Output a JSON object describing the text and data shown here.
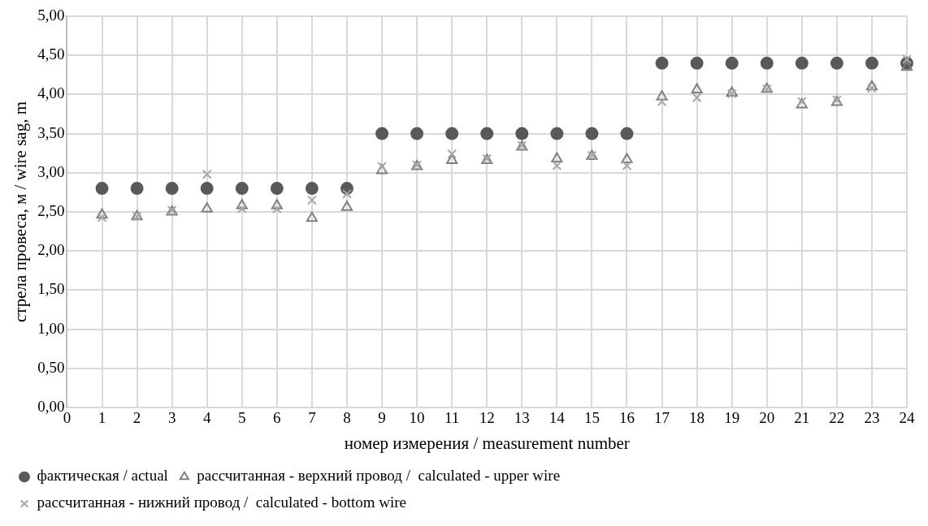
{
  "chart_data": {
    "type": "scatter",
    "xlabel": "номер измерения / measurement number",
    "ylabel": "стрела провеса, м / wire sag, m",
    "x": [
      1,
      2,
      3,
      4,
      5,
      6,
      7,
      8,
      9,
      10,
      11,
      12,
      13,
      14,
      15,
      16,
      17,
      18,
      19,
      20,
      21,
      22,
      23,
      24
    ],
    "series": [
      {
        "name": "фактическая / actual",
        "color": "#595959",
        "marker": "circle",
        "values": [
          2.8,
          2.8,
          2.8,
          2.8,
          2.8,
          2.8,
          2.8,
          2.8,
          3.5,
          3.5,
          3.5,
          3.5,
          3.5,
          3.5,
          3.5,
          3.5,
          4.4,
          4.4,
          4.4,
          4.4,
          4.4,
          4.4,
          4.4,
          4.4
        ]
      },
      {
        "name": "рассчитанная - верхний провод /  calculated - upper wire",
        "color": "#7f7f7f",
        "marker": "triangle",
        "values": [
          2.46,
          2.44,
          2.5,
          2.54,
          2.58,
          2.58,
          2.42,
          2.56,
          3.03,
          3.08,
          3.16,
          3.16,
          3.33,
          3.18,
          3.21,
          3.17,
          3.97,
          4.06,
          4.02,
          4.07,
          3.87,
          3.9,
          4.1,
          4.35
        ]
      },
      {
        "name": "рассчитанная - нижний провод /  calculated - bottom wire",
        "color": "#a6a6a6",
        "marker": "cross",
        "values": [
          2.43,
          2.44,
          2.52,
          2.98,
          2.54,
          2.54,
          2.65,
          2.73,
          3.08,
          3.1,
          3.24,
          3.18,
          3.35,
          3.09,
          3.22,
          3.09,
          3.91,
          3.96,
          4.01,
          4.07,
          3.91,
          3.93,
          4.08,
          4.45
        ]
      }
    ],
    "xlim": [
      0,
      24
    ],
    "xticks": [
      0,
      1,
      2,
      3,
      4,
      5,
      6,
      7,
      8,
      9,
      10,
      11,
      12,
      13,
      14,
      15,
      16,
      17,
      18,
      19,
      20,
      21,
      22,
      23,
      24
    ],
    "ylim": [
      0,
      5
    ],
    "yticks": [
      {
        "value": 0,
        "label": "0,00"
      },
      {
        "value": 0.5,
        "label": "0,50"
      },
      {
        "value": 1,
        "label": "1,00"
      },
      {
        "value": 1.5,
        "label": "1,50"
      },
      {
        "value": 2,
        "label": "2,00"
      },
      {
        "value": 2.5,
        "label": "2,50"
      },
      {
        "value": 3,
        "label": "3,00"
      },
      {
        "value": 3.5,
        "label": "3,50"
      },
      {
        "value": 4,
        "label": "4,00"
      },
      {
        "value": 4.5,
        "label": "4,50"
      },
      {
        "value": 5,
        "label": "5,00"
      }
    ],
    "grid": true,
    "legend": "bottom"
  }
}
